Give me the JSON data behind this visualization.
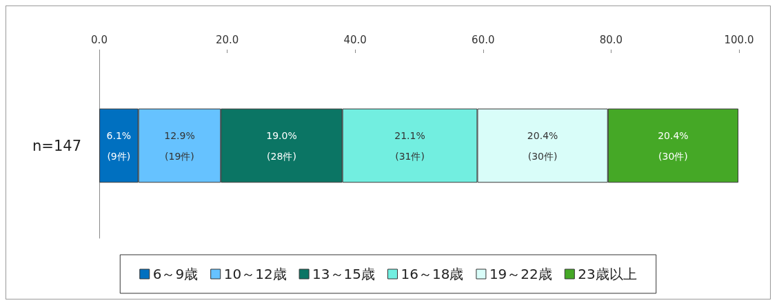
{
  "chart_data": {
    "type": "bar",
    "orientation": "horizontal",
    "stacked": true,
    "categories": [
      "n=147"
    ],
    "series": [
      {
        "name": "6～9歳",
        "color": "#0070c0",
        "values": [
          6.1
        ],
        "value_labels": [
          "6.1%\n(9件)"
        ]
      },
      {
        "name": "10～12歳",
        "color": "#66c2ff",
        "values": [
          12.9
        ],
        "value_labels": [
          "12.9%\n(19件)"
        ]
      },
      {
        "name": "13～15歳",
        "color": "#0b7564",
        "values": [
          19.0
        ],
        "value_labels": [
          "19.0%\n(28件)"
        ]
      },
      {
        "name": "16～18歳",
        "color": "#72eee0",
        "values": [
          21.1
        ],
        "value_labels": [
          "21.1%\n(31件)"
        ]
      },
      {
        "name": "19～22歳",
        "color": "#d9fdf9",
        "values": [
          20.4
        ],
        "value_labels": [
          "20.4%\n(30件)"
        ]
      },
      {
        "name": "23歳以上",
        "color": "#45a826",
        "values": [
          20.4
        ],
        "value_labels": [
          "20.4%\n(30件)"
        ]
      }
    ],
    "xlim": [
      0,
      100
    ],
    "xticks": [
      {
        "value": 0,
        "label": "0.0"
      },
      {
        "value": 20,
        "label": "20.0"
      },
      {
        "value": 40,
        "label": "40.0"
      },
      {
        "value": 60,
        "label": "60.0"
      },
      {
        "value": 80,
        "label": "80.0"
      },
      {
        "value": 100,
        "label": "100.0"
      }
    ],
    "grid": false,
    "legend": "bottom"
  }
}
